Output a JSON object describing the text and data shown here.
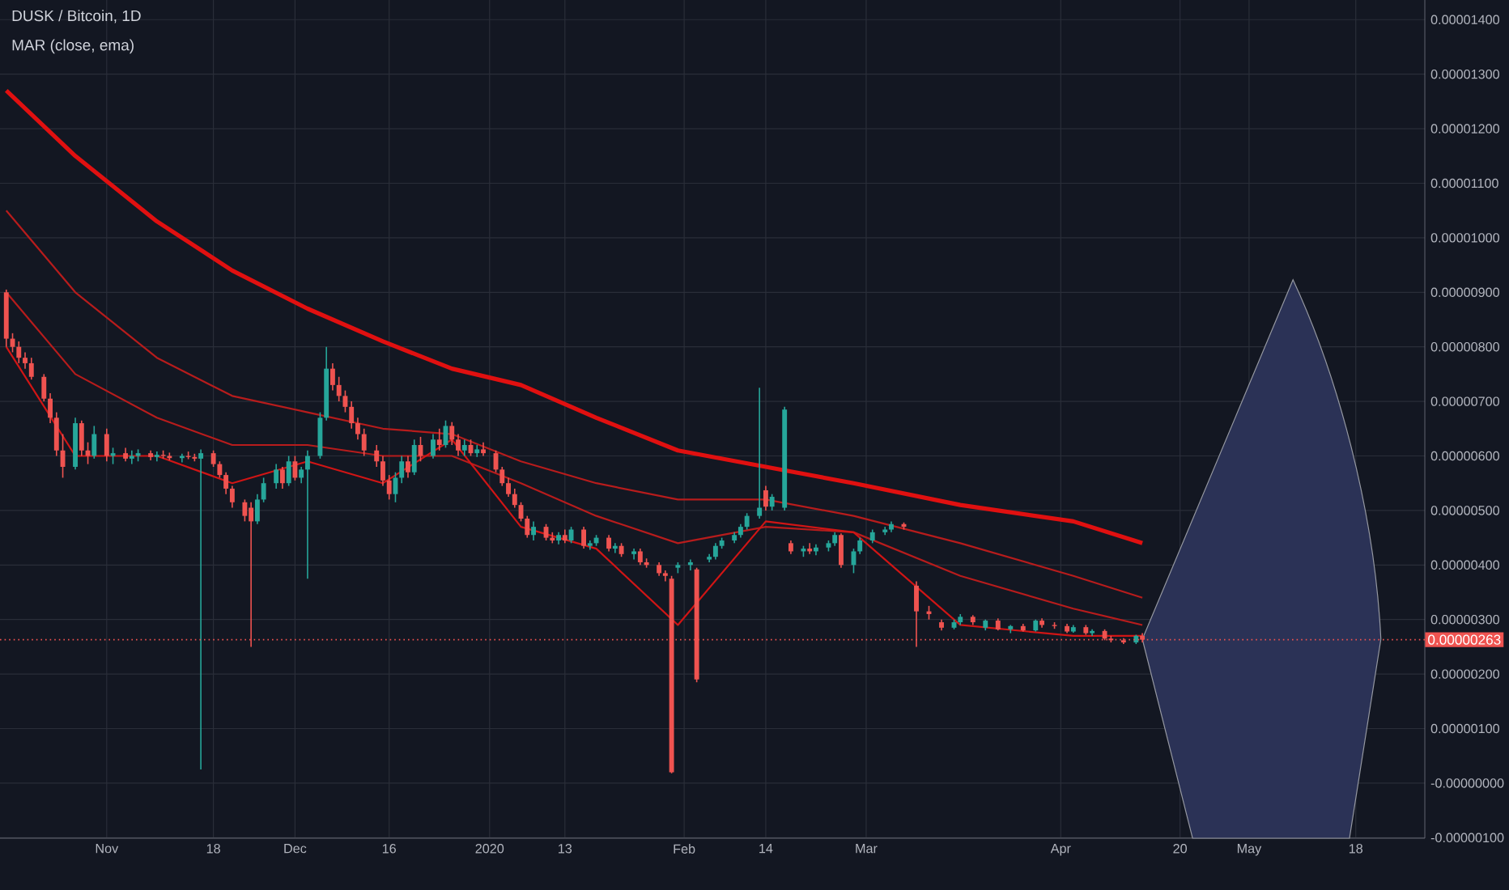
{
  "chart_data": {
    "type": "candlestick",
    "title": "DUSK / Bitcoin, 1D",
    "subtitle": "MAR (close, ema)",
    "x": [
      "2019-10-16",
      "2019-10-17",
      "2019-10-18",
      "2019-10-19",
      "2019-10-20",
      "2019-10-22",
      "2019-10-23",
      "2019-10-24",
      "2019-10-25",
      "2019-10-27",
      "2019-10-28",
      "2019-10-29",
      "2019-10-30",
      "2019-11-01",
      "2019-11-02",
      "2019-11-04",
      "2019-11-05",
      "2019-11-06",
      "2019-11-08",
      "2019-11-09",
      "2019-11-10",
      "2019-11-11",
      "2019-11-13",
      "2019-11-14",
      "2019-11-15",
      "2019-11-16",
      "2019-11-18",
      "2019-11-19",
      "2019-11-20",
      "2019-11-21",
      "2019-11-23",
      "2019-11-24",
      "2019-11-25",
      "2019-11-26",
      "2019-11-28",
      "2019-11-29",
      "2019-11-30",
      "2019-12-01",
      "2019-12-02",
      "2019-12-03",
      "2019-12-05",
      "2019-12-06",
      "2019-12-07",
      "2019-12-08",
      "2019-12-09",
      "2019-12-10",
      "2019-12-11",
      "2019-12-12",
      "2019-12-14",
      "2019-12-15",
      "2019-12-16",
      "2019-12-17",
      "2019-12-18",
      "2019-12-19",
      "2019-12-20",
      "2019-12-21",
      "2019-12-23",
      "2019-12-24",
      "2019-12-25",
      "2019-12-26",
      "2019-12-27",
      "2019-12-28",
      "2019-12-29",
      "2019-12-30",
      "2019-12-31",
      "2020-01-02",
      "2020-01-03",
      "2020-01-04",
      "2020-01-05",
      "2020-01-06",
      "2020-01-07",
      "2020-01-08",
      "2020-01-10",
      "2020-01-11",
      "2020-01-12",
      "2020-01-13",
      "2020-01-14",
      "2020-01-16",
      "2020-01-17",
      "2020-01-18",
      "2020-01-20",
      "2020-01-21",
      "2020-01-22",
      "2020-01-24",
      "2020-01-25",
      "2020-01-26",
      "2020-01-28",
      "2020-01-29",
      "2020-01-30",
      "2020-01-31",
      "2020-02-02",
      "2020-02-03",
      "2020-02-05",
      "2020-02-06",
      "2020-02-07",
      "2020-02-09",
      "2020-02-10",
      "2020-02-11",
      "2020-02-13",
      "2020-02-14",
      "2020-02-15",
      "2020-02-17",
      "2020-02-18",
      "2020-02-20",
      "2020-02-21",
      "2020-02-22",
      "2020-02-24",
      "2020-02-25",
      "2020-02-26",
      "2020-02-28",
      "2020-02-29",
      "2020-03-02",
      "2020-03-04",
      "2020-03-05",
      "2020-03-07",
      "2020-03-09",
      "2020-03-11",
      "2020-03-13",
      "2020-03-15",
      "2020-03-16",
      "2020-03-18",
      "2020-03-20",
      "2020-03-22",
      "2020-03-24",
      "2020-03-26",
      "2020-03-28",
      "2020-03-29",
      "2020-03-31",
      "2020-04-02",
      "2020-04-03",
      "2020-04-05",
      "2020-04-06",
      "2020-04-08",
      "2020-04-09",
      "2020-04-11",
      "2020-04-13",
      "2020-04-14"
    ],
    "ohlc": [
      [
        9e-06,
        9.05e-06,
        8e-06,
        8.15e-06
      ],
      [
        8.15e-06,
        8.25e-06,
        7.9e-06,
        8e-06
      ],
      [
        8e-06,
        8.1e-06,
        7.7e-06,
        7.8e-06
      ],
      [
        7.8e-06,
        7.9e-06,
        7.6e-06,
        7.7e-06
      ],
      [
        7.7e-06,
        7.8e-06,
        7.4e-06,
        7.45e-06
      ],
      [
        7.45e-06,
        7.5e-06,
        7e-06,
        7.05e-06
      ],
      [
        7.05e-06,
        7.15e-06,
        6.6e-06,
        6.7e-06
      ],
      [
        6.7e-06,
        6.8e-06,
        6e-06,
        6.1e-06
      ],
      [
        6.1e-06,
        6.4e-06,
        5.6e-06,
        5.8e-06
      ],
      [
        5.8e-06,
        6.7e-06,
        5.75e-06,
        6.6e-06
      ],
      [
        6.6e-06,
        6.65e-06,
        6e-06,
        6.1e-06
      ],
      [
        6.1e-06,
        6.25e-06,
        5.85e-06,
        6e-06
      ],
      [
        6e-06,
        6.55e-06,
        5.95e-06,
        6.4e-06
      ],
      [
        6.4e-06,
        6.5e-06,
        5.9e-06,
        6e-06
      ],
      [
        6e-06,
        6.15e-06,
        5.85e-06,
        6.05e-06
      ],
      [
        6.05e-06,
        6.15e-06,
        5.9e-06,
        5.95e-06
      ],
      [
        5.95e-06,
        6.1e-06,
        5.85e-06,
        6e-06
      ],
      [
        6e-06,
        6.12e-06,
        5.9e-06,
        6.05e-06
      ],
      [
        6.05e-06,
        6.1e-06,
        5.92e-06,
        5.98e-06
      ],
      [
        5.98e-06,
        6.08e-06,
        5.9e-06,
        6.02e-06
      ],
      [
        6.02e-06,
        6.1e-06,
        5.95e-06,
        6e-06
      ],
      [
        6e-06,
        6.06e-06,
        5.92e-06,
        5.96e-06
      ],
      [
        5.96e-06,
        6.04e-06,
        5.88e-06,
        6e-06
      ],
      [
        6e-06,
        6.08e-06,
        5.94e-06,
        5.98e-06
      ],
      [
        5.98e-06,
        6.04e-06,
        5.9e-06,
        5.95e-06
      ],
      [
        5.95e-06,
        6.12e-06,
        2.5e-07,
        6.05e-06
      ],
      [
        6.05e-06,
        6.1e-06,
        5.8e-06,
        5.85e-06
      ],
      [
        5.85e-06,
        5.9e-06,
        5.6e-06,
        5.65e-06
      ],
      [
        5.65e-06,
        5.7e-06,
        5.3e-06,
        5.4e-06
      ],
      [
        5.4e-06,
        5.45e-06,
        5.05e-06,
        5.15e-06
      ],
      [
        5.15e-06,
        5.2e-06,
        4.8e-06,
        4.9e-06
      ],
      [
        5.05e-06,
        5.15e-06,
        2.5e-06,
        4.8e-06
      ],
      [
        4.8e-06,
        5.3e-06,
        4.75e-06,
        5.2e-06
      ],
      [
        5.2e-06,
        5.6e-06,
        5.15e-06,
        5.5e-06
      ],
      [
        5.5e-06,
        5.85e-06,
        5.4e-06,
        5.75e-06
      ],
      [
        5.75e-06,
        5.8e-06,
        5.4e-06,
        5.5e-06
      ],
      [
        5.5e-06,
        6e-06,
        5.45e-06,
        5.9e-06
      ],
      [
        5.9e-06,
        6e-06,
        5.55e-06,
        5.6e-06
      ],
      [
        5.6e-06,
        5.8e-06,
        5.5e-06,
        5.75e-06
      ],
      [
        5.75e-06,
        6.1e-06,
        3.75e-06,
        6e-06
      ],
      [
        6e-06,
        6.8e-06,
        5.95e-06,
        6.7e-06
      ],
      [
        6.7e-06,
        8e-06,
        6.65e-06,
        7.6e-06
      ],
      [
        7.6e-06,
        7.7e-06,
        7.2e-06,
        7.3e-06
      ],
      [
        7.3e-06,
        7.45e-06,
        7e-06,
        7.1e-06
      ],
      [
        7.1e-06,
        7.2e-06,
        6.8e-06,
        6.9e-06
      ],
      [
        6.9e-06,
        7e-06,
        6.5e-06,
        6.6e-06
      ],
      [
        6.6e-06,
        6.7e-06,
        6.3e-06,
        6.4e-06
      ],
      [
        6.4e-06,
        6.5e-06,
        6e-06,
        6.1e-06
      ],
      [
        6.1e-06,
        6.2e-06,
        5.8e-06,
        5.9e-06
      ],
      [
        5.9e-06,
        6e-06,
        5.45e-06,
        5.55e-06
      ],
      [
        5.55e-06,
        5.65e-06,
        5.2e-06,
        5.3e-06
      ],
      [
        5.3e-06,
        5.7e-06,
        5.15e-06,
        5.6e-06
      ],
      [
        5.6e-06,
        6e-06,
        5.5e-06,
        5.9e-06
      ],
      [
        5.9e-06,
        6e-06,
        5.6e-06,
        5.7e-06
      ],
      [
        5.7e-06,
        6.3e-06,
        5.65e-06,
        6.2e-06
      ],
      [
        6.2e-06,
        6.35e-06,
        5.9e-06,
        6e-06
      ],
      [
        6e-06,
        6.4e-06,
        5.95e-06,
        6.3e-06
      ],
      [
        6.3e-06,
        6.5e-06,
        6.1e-06,
        6.2e-06
      ],
      [
        6.2e-06,
        6.65e-06,
        6.15e-06,
        6.55e-06
      ],
      [
        6.55e-06,
        6.62e-06,
        6.2e-06,
        6.3e-06
      ],
      [
        6.3e-06,
        6.4e-06,
        6e-06,
        6.1e-06
      ],
      [
        6.1e-06,
        6.3e-06,
        6e-06,
        6.2e-06
      ],
      [
        6.2e-06,
        6.3e-06,
        6e-06,
        6.05e-06
      ],
      [
        6.05e-06,
        6.2e-06,
        5.98e-06,
        6.12e-06
      ],
      [
        6.12e-06,
        6.25e-06,
        6e-06,
        6.05e-06
      ],
      [
        6.05e-06,
        6.1e-06,
        5.7e-06,
        5.75e-06
      ],
      [
        5.75e-06,
        5.8e-06,
        5.45e-06,
        5.5e-06
      ],
      [
        5.5e-06,
        5.6e-06,
        5.25e-06,
        5.3e-06
      ],
      [
        5.3e-06,
        5.4e-06,
        5.05e-06,
        5.1e-06
      ],
      [
        5.1e-06,
        5.15e-06,
        4.8e-06,
        4.85e-06
      ],
      [
        4.85e-06,
        4.9e-06,
        4.5e-06,
        4.55e-06
      ],
      [
        4.55e-06,
        4.8e-06,
        4.45e-06,
        4.7e-06
      ],
      [
        4.7e-06,
        4.75e-06,
        4.45e-06,
        4.5e-06
      ],
      [
        4.5e-06,
        4.6e-06,
        4.4e-06,
        4.45e-06
      ],
      [
        4.45e-06,
        4.6e-06,
        4.38e-06,
        4.55e-06
      ],
      [
        4.55e-06,
        4.65e-06,
        4.4e-06,
        4.45e-06
      ],
      [
        4.45e-06,
        4.7e-06,
        4.4e-06,
        4.65e-06
      ],
      [
        4.65e-06,
        4.7e-06,
        4.3e-06,
        4.35e-06
      ],
      [
        4.35e-06,
        4.45e-06,
        4.28e-06,
        4.4e-06
      ],
      [
        4.4e-06,
        4.55e-06,
        4.35e-06,
        4.5e-06
      ],
      [
        4.5e-06,
        4.55e-06,
        4.25e-06,
        4.3e-06
      ],
      [
        4.3e-06,
        4.4e-06,
        4.22e-06,
        4.35e-06
      ],
      [
        4.35e-06,
        4.4e-06,
        4.15e-06,
        4.2e-06
      ],
      [
        4.2e-06,
        4.3e-06,
        4.1e-06,
        4.25e-06
      ],
      [
        4.25e-06,
        4.3e-06,
        4e-06,
        4.05e-06
      ],
      [
        4.05e-06,
        4.12e-06,
        3.95e-06,
        4e-06
      ],
      [
        4e-06,
        4.05e-06,
        3.8e-06,
        3.85e-06
      ],
      [
        3.85e-06,
        3.9e-06,
        3.7e-06,
        3.8e-06
      ],
      [
        3.75e-06,
        3.8e-06,
        1.8e-07,
        2e-07
      ],
      [
        3.95e-06,
        4.05e-06,
        3.85e-06,
        4e-06
      ],
      [
        4e-06,
        4.1e-06,
        3.9e-06,
        4.05e-06
      ],
      [
        3.92e-06,
        3.95e-06,
        1.85e-06,
        1.9e-06
      ],
      [
        4.1e-06,
        4.2e-06,
        4.05e-06,
        4.15e-06
      ],
      [
        4.15e-06,
        4.4e-06,
        4.1e-06,
        4.35e-06
      ],
      [
        4.35e-06,
        4.5e-06,
        4.3e-06,
        4.45e-06
      ],
      [
        4.45e-06,
        4.6e-06,
        4.4e-06,
        4.55e-06
      ],
      [
        4.55e-06,
        4.75e-06,
        4.5e-06,
        4.7e-06
      ],
      [
        4.7e-06,
        4.95e-06,
        4.65e-06,
        4.9e-06
      ],
      [
        4.9e-06,
        7.25e-06,
        4.85e-06,
        5.05e-06
      ],
      [
        5.37e-06,
        5.45e-06,
        5e-06,
        5.07e-06
      ],
      [
        5.07e-06,
        5.3e-06,
        5e-06,
        5.25e-06
      ],
      [
        5.05e-06,
        6.9e-06,
        5e-06,
        6.85e-06
      ],
      [
        4.4e-06,
        4.45e-06,
        4.2e-06,
        4.25e-06
      ],
      [
        4.25e-06,
        4.35e-06,
        4.15e-06,
        4.3e-06
      ],
      [
        4.3e-06,
        4.4e-06,
        4.2e-06,
        4.25e-06
      ],
      [
        4.25e-06,
        4.38e-06,
        4.18e-06,
        4.32e-06
      ],
      [
        4.32e-06,
        4.45e-06,
        4.25e-06,
        4.4e-06
      ],
      [
        4.4e-06,
        4.6e-06,
        4.35e-06,
        4.55e-06
      ],
      [
        4.55e-06,
        4.58e-06,
        3.95e-06,
        4e-06
      ],
      [
        4e-06,
        4.3e-06,
        3.85e-06,
        4.25e-06
      ],
      [
        4.25e-06,
        4.5e-06,
        4.2e-06,
        4.45e-06
      ],
      [
        4.45e-06,
        4.65e-06,
        4.4e-06,
        4.6e-06
      ],
      [
        4.6e-06,
        4.7e-06,
        4.55e-06,
        4.65e-06
      ],
      [
        4.65e-06,
        4.8e-06,
        4.6e-06,
        4.75e-06
      ],
      [
        4.75e-06,
        4.78e-06,
        4.65e-06,
        4.7e-06
      ],
      [
        3.62e-06,
        3.7e-06,
        2.5e-06,
        3.15e-06
      ],
      [
        3.15e-06,
        3.25e-06,
        3e-06,
        3.1e-06
      ],
      [
        2.95e-06,
        3e-06,
        2.8e-06,
        2.85e-06
      ],
      [
        2.85e-06,
        3e-06,
        2.82e-06,
        2.95e-06
      ],
      [
        2.95e-06,
        3.1e-06,
        2.9e-06,
        3.05e-06
      ],
      [
        3.05e-06,
        3.08e-06,
        2.9e-06,
        2.95e-06
      ],
      [
        2.85e-06,
        3e-06,
        2.8e-06,
        2.98e-06
      ],
      [
        2.98e-06,
        3.02e-06,
        2.8e-06,
        2.82e-06
      ],
      [
        2.82e-06,
        2.9e-06,
        2.75e-06,
        2.88e-06
      ],
      [
        2.88e-06,
        2.92e-06,
        2.78e-06,
        2.8e-06
      ],
      [
        2.8e-06,
        3e-06,
        2.78e-06,
        2.98e-06
      ],
      [
        2.98e-06,
        3.02e-06,
        2.85e-06,
        2.9e-06
      ],
      [
        2.9e-06,
        2.95e-06,
        2.83e-06,
        2.88e-06
      ],
      [
        2.88e-06,
        2.92e-06,
        2.75e-06,
        2.78e-06
      ],
      [
        2.78e-06,
        2.9e-06,
        2.76e-06,
        2.86e-06
      ],
      [
        2.86e-06,
        2.9e-06,
        2.72e-06,
        2.75e-06
      ],
      [
        2.75e-06,
        2.82e-06,
        2.7e-06,
        2.79e-06
      ],
      [
        2.79e-06,
        2.82e-06,
        2.62e-06,
        2.65e-06
      ],
      [
        2.65e-06,
        2.7e-06,
        2.58e-06,
        2.62e-06
      ],
      [
        2.62e-06,
        2.66e-06,
        2.55e-06,
        2.58e-06
      ],
      [
        2.58e-06,
        2.72e-06,
        2.55e-06,
        2.7e-06
      ],
      [
        2.7e-06,
        2.75e-06,
        2.58e-06,
        2.63e-06
      ]
    ],
    "colors": [
      "#ef5350",
      "#ef5350",
      "#ef5350",
      "#ef5350",
      "#ef5350",
      "#ef5350",
      "#ef5350",
      "#ef5350",
      "#ef5350",
      "#26a69a",
      "#ef5350",
      "#ef5350",
      "#26a69a",
      "#ef5350",
      "#26a69a",
      "#ef5350",
      "#26a69a",
      "#26a69a",
      "#ef5350",
      "#26a69a",
      "#ef5350",
      "#ef5350",
      "#26a69a",
      "#ef5350",
      "#ef5350",
      "#26a69a",
      "#ef5350",
      "#ef5350",
      "#ef5350",
      "#ef5350",
      "#ef5350",
      "#ef5350",
      "#26a69a",
      "#26a69a",
      "#26a69a",
      "#ef5350",
      "#26a69a",
      "#ef5350",
      "#26a69a",
      "#26a69a",
      "#26a69a",
      "#26a69a",
      "#ef5350",
      "#ef5350",
      "#ef5350",
      "#ef5350",
      "#ef5350",
      "#ef5350",
      "#ef5350",
      "#ef5350",
      "#ef5350",
      "#26a69a",
      "#26a69a",
      "#ef5350",
      "#26a69a",
      "#ef5350",
      "#26a69a",
      "#ef5350",
      "#26a69a",
      "#ef5350",
      "#ef5350",
      "#26a69a",
      "#ef5350",
      "#26a69a",
      "#ef5350",
      "#ef5350",
      "#ef5350",
      "#ef5350",
      "#ef5350",
      "#ef5350",
      "#ef5350",
      "#26a69a",
      "#ef5350",
      "#ef5350",
      "#26a69a",
      "#ef5350",
      "#26a69a",
      "#ef5350",
      "#26a69a",
      "#26a69a",
      "#ef5350",
      "#26a69a",
      "#ef5350",
      "#26a69a",
      "#ef5350",
      "#ef5350",
      "#ef5350",
      "#ef5350",
      "#ef5350",
      "#26a69a",
      "#26a69a",
      "#ef5350",
      "#26a69a",
      "#26a69a",
      "#26a69a",
      "#26a69a",
      "#26a69a",
      "#26a69a",
      "#26a69a",
      "#ef5350",
      "#26a69a",
      "#26a69a",
      "#ef5350",
      "#26a69a",
      "#ef5350",
      "#26a69a",
      "#26a69a",
      "#26a69a",
      "#ef5350",
      "#26a69a",
      "#26a69a",
      "#26a69a",
      "#26a69a",
      "#26a69a",
      "#ef5350",
      "#ef5350",
      "#ef5350",
      "#ef5350",
      "#26a69a",
      "#26a69a",
      "#ef5350",
      "#26a69a",
      "#ef5350",
      "#26a69a",
      "#ef5350",
      "#26a69a",
      "#ef5350",
      "#ef5350",
      "#ef5350",
      "#26a69a",
      "#ef5350",
      "#26a69a",
      "#ef5350",
      "#ef5350",
      "#ef5350",
      "#26a69a",
      "#ef5350"
    ],
    "series": [
      {
        "type": "line",
        "color": "#e01010",
        "x": [
          "2019-10-16",
          "2019-10-27",
          "2019-11-09",
          "2019-11-21",
          "2019-12-03",
          "2019-12-15",
          "2019-12-26",
          "2020-01-06",
          "2020-01-18",
          "2020-01-31",
          "2020-02-14",
          "2020-02-28",
          "2020-03-16",
          "2020-04-03",
          "2020-04-14"
        ],
        "values": [
          1.27e-05,
          1.15e-05,
          1.03e-05,
          9.4e-06,
          8.7e-06,
          8.1e-06,
          7.6e-06,
          7.3e-06,
          6.7e-06,
          6.1e-06,
          5.8e-06,
          5.5e-06,
          5.1e-06,
          4.8e-06,
          4.4e-06
        ]
      },
      {
        "type": "line",
        "color": "#b71c1c",
        "x": [
          "2019-10-16",
          "2019-10-27",
          "2019-11-09",
          "2019-11-21",
          "2019-12-03",
          "2019-12-15",
          "2019-12-26",
          "2020-01-06",
          "2020-01-18",
          "2020-01-31",
          "2020-02-14",
          "2020-02-28",
          "2020-03-16",
          "2020-04-03",
          "2020-04-14"
        ],
        "values": [
          1.05e-05,
          9e-06,
          7.8e-06,
          7.1e-06,
          6.8e-06,
          6.5e-06,
          6.4e-06,
          5.9e-06,
          5.5e-06,
          5.2e-06,
          5.2e-06,
          4.9e-06,
          4.4e-06,
          3.8e-06,
          3.4e-06
        ]
      },
      {
        "type": "line",
        "color": "#b71c1c",
        "x": [
          "2019-10-16",
          "2019-10-27",
          "2019-11-09",
          "2019-11-21",
          "2019-12-03",
          "2019-12-15",
          "2019-12-26",
          "2020-01-06",
          "2020-01-18",
          "2020-01-31",
          "2020-02-14",
          "2020-02-28",
          "2020-03-16",
          "2020-04-03",
          "2020-04-14"
        ],
        "values": [
          9e-06,
          7.5e-06,
          6.7e-06,
          6.2e-06,
          6.2e-06,
          6e-06,
          6e-06,
          5.5e-06,
          4.9e-06,
          4.4e-06,
          4.7e-06,
          4.6e-06,
          3.8e-06,
          3.2e-06,
          2.9e-06
        ]
      },
      {
        "type": "line",
        "color": "#d01515",
        "x": [
          "2019-10-16",
          "2019-10-27",
          "2019-11-09",
          "2019-11-21",
          "2019-12-03",
          "2019-12-15",
          "2019-12-26",
          "2020-01-06",
          "2020-01-18",
          "2020-01-31",
          "2020-02-14",
          "2020-02-28",
          "2020-03-16",
          "2020-04-03",
          "2020-04-14"
        ],
        "values": [
          8e-06,
          6e-06,
          6e-06,
          5.5e-06,
          5.9e-06,
          5.5e-06,
          6.3e-06,
          4.7e-06,
          4.3e-06,
          2.9e-06,
          4.8e-06,
          4.6e-06,
          2.9e-06,
          2.7e-06,
          2.7e-06
        ]
      }
    ],
    "xlim": [
      "2019-10-15",
      "2020-05-29"
    ],
    "xticks": [
      {
        "value": "2019-11-01",
        "label": "Nov"
      },
      {
        "value": "2019-11-18",
        "label": "18"
      },
      {
        "value": "2019-12-01",
        "label": "Dec"
      },
      {
        "value": "2019-12-16",
        "label": "16"
      },
      {
        "value": "2020-01-01",
        "label": "2020"
      },
      {
        "value": "2020-01-13",
        "label": "13"
      },
      {
        "value": "2020-02-01",
        "label": "Feb"
      },
      {
        "value": "2020-02-14",
        "label": "14"
      },
      {
        "value": "2020-03-01",
        "label": "Mar"
      },
      {
        "value": "2020-04-01",
        "label": "Apr"
      },
      {
        "value": "2020-04-20",
        "label": "20"
      },
      {
        "value": "2020-05-01",
        "label": "May"
      },
      {
        "value": "2020-05-18",
        "label": "18"
      }
    ],
    "ylim": [
      -1.01e-06,
      1.436e-05
    ],
    "yticks": [
      {
        "value": 1.4e-05,
        "label": "0.00001400"
      },
      {
        "value": 1.3e-05,
        "label": "0.00001300"
      },
      {
        "value": 1.2e-05,
        "label": "0.00001200"
      },
      {
        "value": 1.1e-05,
        "label": "0.00001100"
      },
      {
        "value": 1e-05,
        "label": "0.00001000"
      },
      {
        "value": 9e-06,
        "label": "0.00000900"
      },
      {
        "value": 8e-06,
        "label": "0.00000800"
      },
      {
        "value": 7e-06,
        "label": "0.00000700"
      },
      {
        "value": 6e-06,
        "label": "0.00000600"
      },
      {
        "value": 5e-06,
        "label": "0.00000500"
      },
      {
        "value": 4e-06,
        "label": "0.00000400"
      },
      {
        "value": 3e-06,
        "label": "0.00000300"
      },
      {
        "value": 2e-06,
        "label": "0.00000200"
      },
      {
        "value": 1e-06,
        "label": "0.00000100"
      },
      {
        "value": 0,
        "label": "-0.00000000"
      },
      {
        "value": -1e-06,
        "label": "-0.00000100"
      }
    ],
    "grid": true,
    "ref_lines": [
      {
        "axis": "y",
        "value": 2.63e-06,
        "label": "0.00000263",
        "color": "#ef5350",
        "line_style": "dotted"
      }
    ]
  }
}
